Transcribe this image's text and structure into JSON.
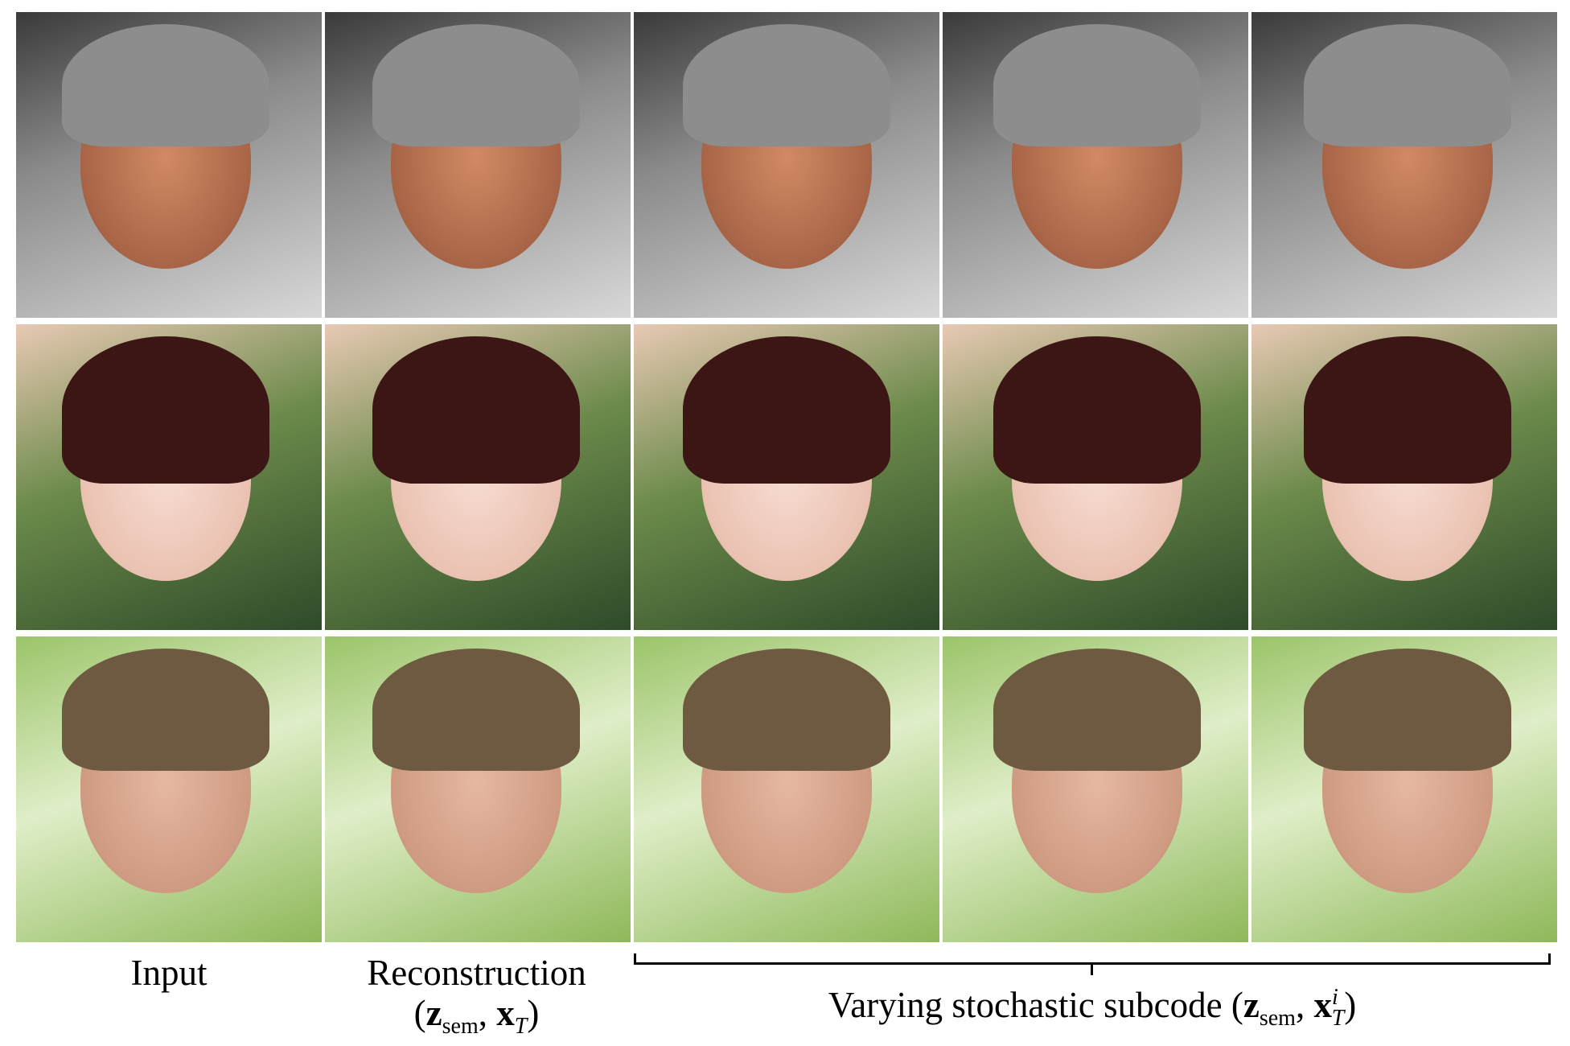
{
  "figure": {
    "rows": [
      {
        "subject": "man-with-gray-beanie"
      },
      {
        "subject": "woman-with-bangs"
      },
      {
        "subject": "man-short-hair-outdoor"
      }
    ],
    "columns": 5,
    "captions": {
      "input": "Input",
      "reconstruction": "Reconstruction",
      "reconstruction_formula": {
        "open": "(",
        "z": "z",
        "z_sub": "sem",
        "comma": ",",
        "x": "x",
        "x_sub": "T",
        "close": ")"
      },
      "varying": "Varying stochastic subcode",
      "varying_formula": {
        "open": "(",
        "z": "z",
        "z_sub": "sem",
        "comma": ",",
        "x": "x",
        "x_sup": "i",
        "x_sub": "T",
        "close": ")"
      }
    }
  }
}
